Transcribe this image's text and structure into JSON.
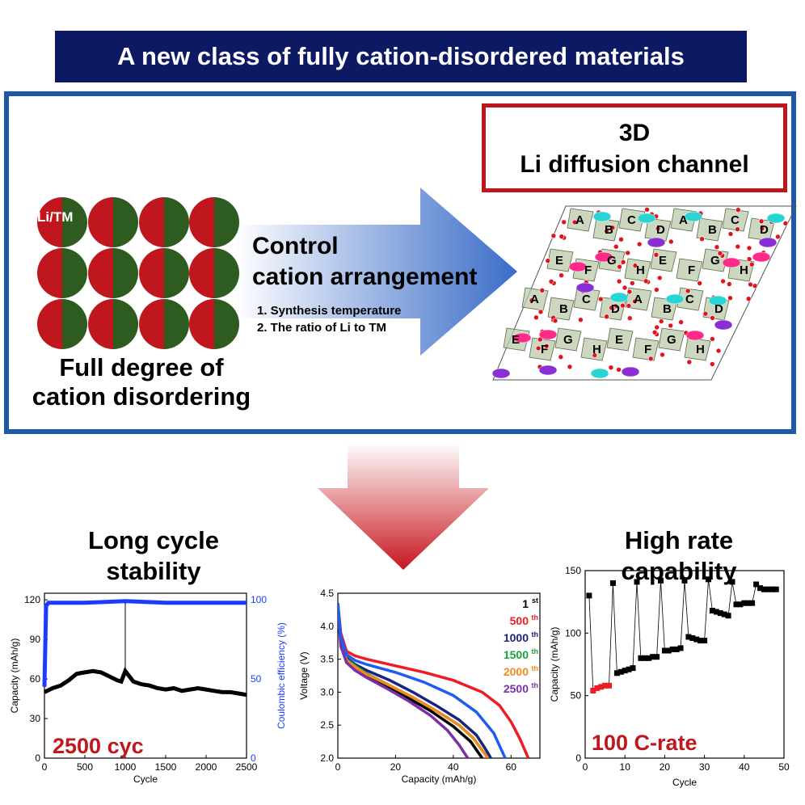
{
  "banner": {
    "title": "A new class of fully cation-disordered materials"
  },
  "top": {
    "circle_label": "Li/TM",
    "full_degree_line1": "Full degree of",
    "full_degree_line2": "cation disordering",
    "control_line1": "Control",
    "control_line2": "cation arrangement",
    "steps": [
      "1.  Synthesis temperature",
      "2.  The ratio of Li to TM"
    ],
    "channel_line1": "3D",
    "channel_line2": "Li diffusion channel",
    "site_letters_row1": [
      "A",
      "B",
      "C",
      "D",
      "A",
      "B",
      "C",
      "D"
    ],
    "site_letters_row2": [
      "E",
      "F",
      "G",
      "H",
      "E",
      "F",
      "G",
      "H"
    ],
    "site_letters_row3": [
      "A",
      "B",
      "C",
      "D",
      "A",
      "B",
      "C",
      "D"
    ],
    "site_letters_row4": [
      "E",
      "F",
      "G",
      "H",
      "E",
      "F",
      "G",
      "H"
    ],
    "colors": {
      "li": "#c0161e",
      "tm": "#2e5b1f",
      "arrow": "#3a6cc8",
      "banner": "#0d1a63",
      "box": "#1f58a8"
    }
  },
  "left": {
    "title_line1": "Long cycle",
    "title_line2": "stability",
    "badge": "2500 cyc",
    "chart_data": {
      "type": "scatter",
      "xlabel": "Cycle",
      "ylabel": "Capacity (mAh/g)",
      "ylabel_right": "Coulombic efficiency (%)",
      "xlim": [
        0,
        2500
      ],
      "ylim": [
        0,
        125
      ],
      "ylim_right": [
        0,
        104
      ],
      "xticks": [
        "0",
        "500",
        "1000",
        "1500",
        "2000",
        "2500"
      ],
      "yticks": [
        "0",
        "30",
        "60",
        "90",
        "120"
      ],
      "yticks_right": [
        "0",
        "50",
        "100"
      ],
      "capacity": {
        "x": [
          0,
          100,
          200,
          300,
          400,
          500,
          600,
          700,
          800,
          900,
          950,
          1000,
          1050,
          1100,
          1200,
          1300,
          1400,
          1500,
          1600,
          1700,
          1800,
          1900,
          2000,
          2100,
          2200,
          2300,
          2400,
          2500
        ],
        "y": [
          50,
          53,
          55,
          59,
          64,
          65,
          66,
          65,
          62,
          59,
          58,
          66,
          62,
          58,
          56,
          55,
          53,
          52,
          53,
          51,
          52,
          53,
          52,
          51,
          50,
          50,
          49,
          48
        ]
      },
      "efficiency": {
        "x": [
          0,
          20,
          50,
          100,
          500,
          1000,
          1500,
          2000,
          2500
        ],
        "y": [
          45,
          96,
          98,
          98,
          98,
          99,
          98,
          98,
          98
        ]
      }
    }
  },
  "middle": {
    "chart_data": {
      "type": "line",
      "xlabel": "Capacity (mAh/g)",
      "ylabel": "Voltage (V)",
      "xlim": [
        0,
        70
      ],
      "ylim": [
        2.0,
        4.5
      ],
      "xticks": [
        "0",
        "20",
        "40",
        "60"
      ],
      "yticks": [
        "2.0",
        "2.5",
        "3.0",
        "3.5",
        "4.0",
        "4.5"
      ],
      "series": [
        {
          "name": "1",
          "sup": "st",
          "color": "#000000",
          "x": [
            0,
            1,
            3,
            6,
            10,
            16,
            24,
            32,
            40,
            46,
            50
          ],
          "y": [
            4.35,
            3.8,
            3.5,
            3.38,
            3.25,
            3.1,
            2.92,
            2.72,
            2.48,
            2.25,
            2.0
          ]
        },
        {
          "name": "500",
          "sup": "th",
          "color": "#ee1c25",
          "x": [
            0,
            1,
            3,
            6,
            10,
            20,
            30,
            40,
            50,
            56,
            60,
            63,
            66
          ],
          "y": [
            4.35,
            3.9,
            3.62,
            3.55,
            3.5,
            3.4,
            3.3,
            3.18,
            3.0,
            2.8,
            2.55,
            2.3,
            2.0
          ]
        },
        {
          "name": "1000",
          "sup": "th",
          "color": "#1a237e",
          "x": [
            0,
            1,
            3,
            6,
            10,
            18,
            26,
            34,
            42,
            48,
            51,
            53
          ],
          "y": [
            4.3,
            3.8,
            3.52,
            3.42,
            3.33,
            3.18,
            3.0,
            2.8,
            2.58,
            2.35,
            2.15,
            2.0
          ]
        },
        {
          "name": "1500",
          "sup": "th",
          "color": "#1aa33a",
          "x": [
            0,
            1,
            3,
            6,
            10,
            18,
            26,
            34,
            42,
            47,
            50,
            52
          ],
          "y": [
            4.3,
            3.75,
            3.5,
            3.4,
            3.28,
            3.1,
            2.92,
            2.72,
            2.5,
            2.3,
            2.12,
            2.0
          ]
        },
        {
          "name": "2000",
          "sup": "th",
          "color": "#f08a1c",
          "x": [
            0,
            1,
            3,
            6,
            10,
            18,
            26,
            34,
            42,
            47,
            50,
            52
          ],
          "y": [
            4.3,
            3.75,
            3.48,
            3.38,
            3.27,
            3.1,
            2.92,
            2.72,
            2.5,
            2.3,
            2.12,
            2.0
          ]
        },
        {
          "name": "2500",
          "sup": "th",
          "color": "#7b2fa8",
          "x": [
            0,
            1,
            3,
            6,
            10,
            16,
            24,
            32,
            38,
            42,
            45
          ],
          "y": [
            4.3,
            3.7,
            3.45,
            3.33,
            3.22,
            3.08,
            2.88,
            2.65,
            2.42,
            2.2,
            2.0
          ]
        },
        {
          "name": "",
          "sup": "",
          "color": "#1e5cf0",
          "x": [
            0,
            1,
            3,
            6,
            10,
            20,
            30,
            40,
            48,
            54,
            58
          ],
          "y": [
            4.35,
            3.85,
            3.57,
            3.48,
            3.42,
            3.3,
            3.15,
            2.95,
            2.7,
            2.38,
            2.0
          ]
        }
      ]
    }
  },
  "right": {
    "title_line1": "High rate",
    "title_line2": "capability",
    "badge": "100 C-rate",
    "chart_data": {
      "type": "scatter",
      "xlabel": "Cycle",
      "ylabel": "Capacity (mAh/g)",
      "xlim": [
        0,
        50
      ],
      "ylim": [
        0,
        150
      ],
      "xticks": [
        "0",
        "10",
        "20",
        "30",
        "40",
        "50"
      ],
      "yticks": [
        "0",
        "50",
        "100",
        "150"
      ],
      "x": [
        1,
        2,
        3,
        4,
        5,
        6,
        7,
        8,
        9,
        10,
        11,
        12,
        13,
        14,
        15,
        16,
        17,
        18,
        19,
        20,
        21,
        22,
        23,
        24,
        25,
        26,
        27,
        28,
        29,
        30,
        31,
        32,
        33,
        34,
        35,
        36,
        37,
        38,
        39,
        40,
        41,
        42,
        43,
        44,
        45,
        46,
        47,
        48
      ],
      "y": [
        130,
        54,
        56,
        57,
        58,
        58,
        140,
        68,
        69,
        70,
        71,
        72,
        141,
        80,
        80,
        80,
        81,
        81,
        142,
        86,
        86,
        87,
        87,
        88,
        142,
        97,
        96,
        95,
        94,
        94,
        143,
        118,
        117,
        116,
        115,
        114,
        141,
        123,
        123,
        124,
        124,
        124,
        139,
        136,
        135,
        135,
        135,
        135
      ],
      "highlight_indices": [
        1,
        2,
        3,
        4,
        5
      ],
      "highlight_color": "#ee1c25"
    }
  }
}
